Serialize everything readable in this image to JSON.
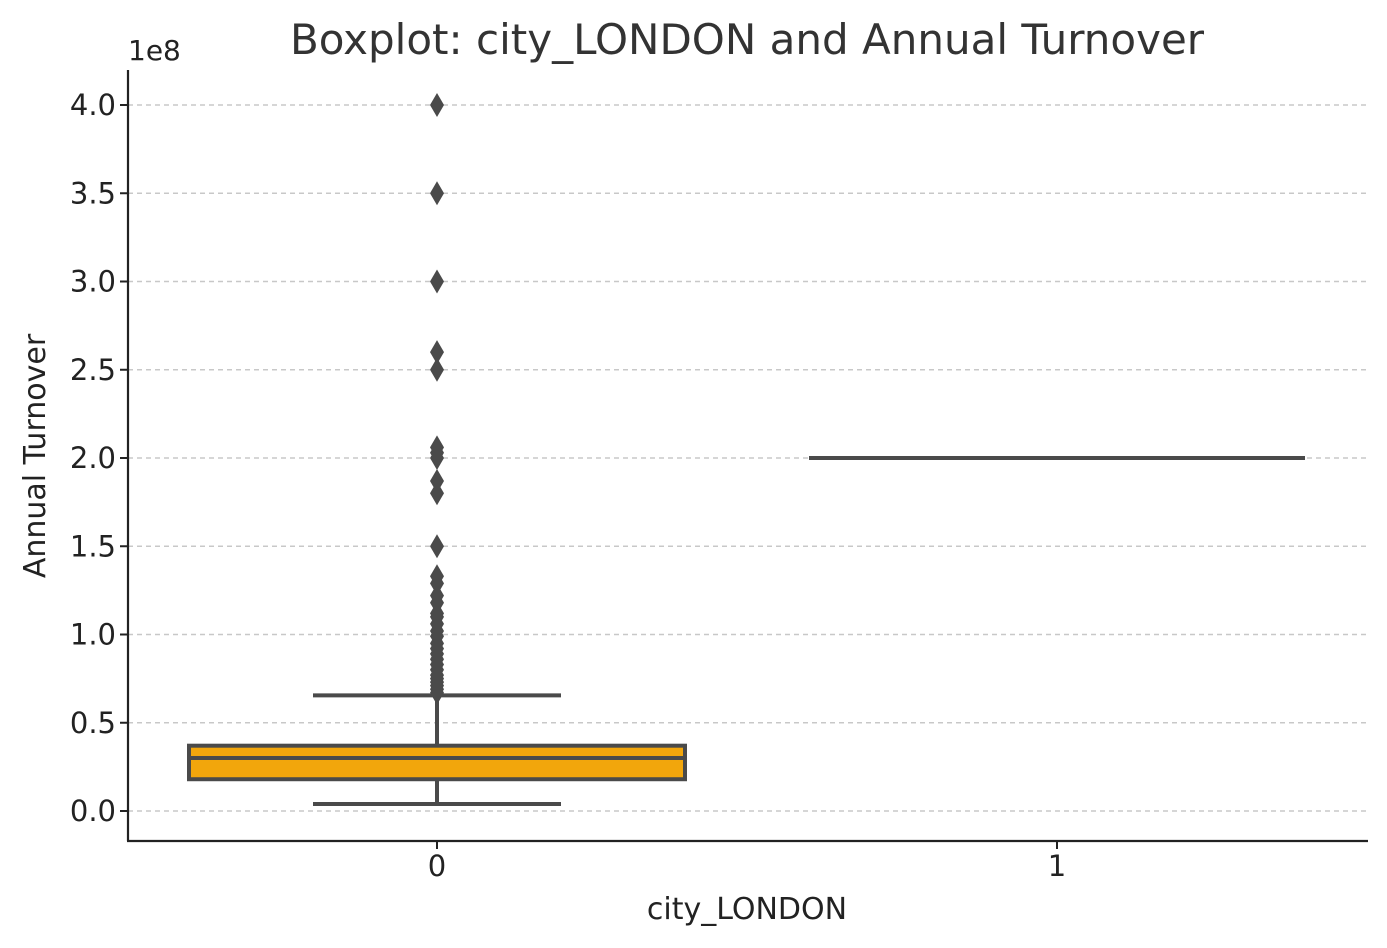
{
  "chart_data": {
    "type": "boxplot",
    "title": "Boxplot: city_LONDON and Annual Turnover",
    "xlabel": "city_LONDON",
    "ylabel": "Annual Turnover",
    "y_offset_label": "1e8",
    "categories": [
      "0",
      "1"
    ],
    "ylim": [
      -0.17,
      4.2
    ],
    "y_ticks": [
      0.0,
      0.5,
      1.0,
      1.5,
      2.0,
      2.5,
      3.0,
      3.5,
      4.0
    ],
    "y_tick_labels": [
      "0.0",
      "0.5",
      "1.0",
      "1.5",
      "2.0",
      "2.5",
      "3.0",
      "3.5",
      "4.0"
    ],
    "grid": "horizontal dashed",
    "units_scale": 100000000,
    "boxes": [
      {
        "category": "0",
        "whislo": 0.04,
        "q1": 0.18,
        "median": 0.3,
        "q3": 0.37,
        "whishi": 0.655,
        "fliers": [
          0.67,
          0.69,
          0.71,
          0.73,
          0.75,
          0.77,
          0.8,
          0.83,
          0.86,
          0.89,
          0.92,
          0.95,
          0.99,
          1.02,
          1.06,
          1.1,
          1.12,
          1.18,
          1.22,
          1.29,
          1.33,
          1.5,
          1.8,
          1.87,
          2.0,
          2.03,
          2.06,
          2.5,
          2.6,
          3.0,
          3.5,
          4.0
        ],
        "color": "#f2a60c"
      },
      {
        "category": "1",
        "whislo": 2.0,
        "q1": 2.0,
        "median": 2.0,
        "q3": 2.0,
        "whishi": 2.0,
        "fliers": [],
        "color": "#f2a60c"
      }
    ],
    "line_color": "#4a4a4a"
  }
}
